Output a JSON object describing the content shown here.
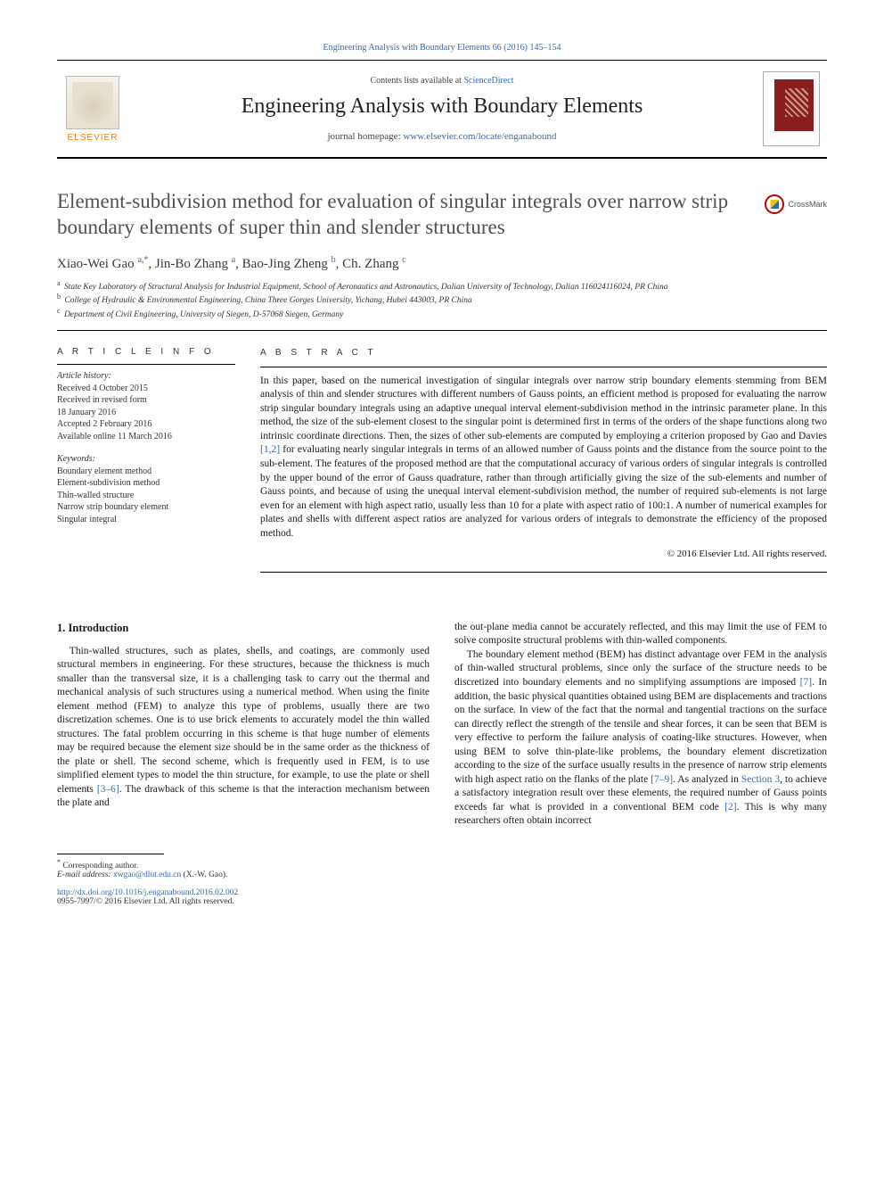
{
  "colors": {
    "link": "#3a6aa8",
    "elsevier_orange": "#ff7a00",
    "cover_red": "#8a1e1e",
    "text": "#1a1a1a",
    "title_gray": "#505050"
  },
  "top_link": {
    "journal_citation": "Engineering Analysis with Boundary Elements 66 (2016) 145–154"
  },
  "masthead": {
    "contents_prefix": "Contents lists available at ",
    "contents_link": "ScienceDirect",
    "journal_name": "Engineering Analysis with Boundary Elements",
    "homepage_prefix": "journal homepage: ",
    "homepage_url": "www.elsevier.com/locate/enganabound",
    "elsevier_label": "ELSEVIER"
  },
  "crossmark": {
    "label": "CrossMark"
  },
  "paper": {
    "title": "Element-subdivision method for evaluation of singular integrals over narrow strip boundary elements of super thin and slender structures",
    "authors_html": "Xiao-Wei Gao <sup><a>a</a>,<a>*</a></sup>, Jin-Bo Zhang <sup><a>a</a></sup>, Bao-Jing Zheng <sup><a>b</a></sup>, Ch. Zhang <sup><a>c</a></sup>",
    "affiliations": [
      {
        "sup": "a",
        "text": "State Key Laboratory of Structural Analysis for Industrial Equipment, School of Aeronautics and Astronautics, Dalian University of Technology, Dalian 116024116024, PR China"
      },
      {
        "sup": "b",
        "text": "College of Hydraulic & Environmental Engineering, China Three Gorges University, Yichang, Hubei 443003, PR China"
      },
      {
        "sup": "c",
        "text": "Department of Civil Engineering, University of Siegen, D-57068 Siegen, Germany"
      }
    ]
  },
  "article_info": {
    "heading": "A R T I C L E  I N F O",
    "history_label": "Article history:",
    "history": [
      "Received 4 October 2015",
      "Received in revised form",
      "18 January 2016",
      "Accepted 2 February 2016",
      "Available online 11 March 2016"
    ],
    "keywords_label": "Keywords:",
    "keywords": [
      "Boundary element method",
      "Element-subdivision method",
      "Thin-walled structure",
      "Narrow strip boundary element",
      "Singular integral"
    ]
  },
  "abstract": {
    "heading": "A B S T R A C T",
    "text_pre": "In this paper, based on the numerical investigation of singular integrals over narrow strip boundary elements stemming from BEM analysis of thin and slender structures with different numbers of Gauss points, an efficient method is proposed for evaluating the narrow strip singular boundary integrals using an adaptive unequal interval element-subdivision method in the intrinsic parameter plane. In this method, the size of the sub-element closest to the singular point is determined first in terms of the orders of the shape functions along two intrinsic coordinate directions. Then, the sizes of other sub-elements are computed by employing a criterion proposed by Gao and Davies ",
    "ref12": "[1,2]",
    "text_post": " for evaluating nearly singular integrals in terms of an allowed number of Gauss points and the distance from the source point to the sub-element. The features of the proposed method are that the computational accuracy of various orders of singular integrals is controlled by the upper bound of the error of Gauss quadrature, rather than through artificially giving the size of the sub-elements and number of Gauss points, and because of using the unequal interval element-subdivision method, the number of required sub-elements is not large even for an element with high aspect ratio, usually less than 10 for a plate with aspect ratio of 100:1. A number of numerical examples for plates and shells with different aspect ratios are analyzed for various orders of integrals to demonstrate the efficiency of the proposed method.",
    "copyright": "© 2016 Elsevier Ltd. All rights reserved."
  },
  "body": {
    "section_heading": "1.  Introduction",
    "p1_pre": "Thin-walled structures, such as plates, shells, and coatings, are commonly used structural members in engineering. For these structures, because the thickness is much smaller than the transversal size, it is a challenging task to carry out the thermal and mechanical analysis of such structures using a numerical method. When using the finite element method (FEM) to analyze this type of problems, usually there are two discretization schemes. One is to use brick elements to accurately model the thin walled structures. The fatal problem occurring in this scheme is that huge number of elements may be required because the element size should be in the same order as the thickness of the plate or shell. The second scheme, which is frequently used in FEM, is to use simplified element types to model the thin structure, for example, to use the plate or shell elements ",
    "ref36": "[3–6]",
    "p1_post": ". The drawback of this scheme is that the interaction mechanism between the plate and ",
    "p2": "the out-plane media cannot be accurately reflected, and this may limit the use of FEM to solve composite structural problems with thin-walled components.",
    "p3_a": "The boundary element method (BEM) has distinct advantage over FEM in the analysis of thin-walled structural problems, since only the surface of the structure needs to be discretized into boundary elements and no simplifying assumptions are imposed ",
    "ref7": "[7]",
    "p3_b": ". In addition, the basic physical quantities obtained using BEM are displacements and tractions on the surface. In view of the fact that the normal and tangential tractions on the surface can directly reflect the strength of the tensile and shear forces, it can be seen that BEM is very effective to perform the failure analysis of coating-like structures. However, when using BEM to solve thin-plate-like problems, the boundary element discretization according to the size of the surface usually results in the presence of narrow strip elements with high aspect ratio on the flanks of the plate ",
    "ref79": "[7–9]",
    "p3_c": ". As analyzed in ",
    "refsec3": "Section 3",
    "p3_d": ", to achieve a satisfactory integration result over these elements, the required number of Gauss points exceeds far what is provided in a conventional BEM code ",
    "ref2": "[2]",
    "p3_e": ". This is why many researchers often obtain incorrect"
  },
  "footnotes": {
    "corr": "Corresponding author.",
    "email_label": "E-mail address: ",
    "email": "xwgao@dlut.edu.cn",
    "email_tail": " (X.-W. Gao).",
    "doi": "http://dx.doi.org/10.1016/j.enganabound.2016.02.002",
    "issn_line": "0955-7997/© 2016 Elsevier Ltd. All rights reserved."
  }
}
